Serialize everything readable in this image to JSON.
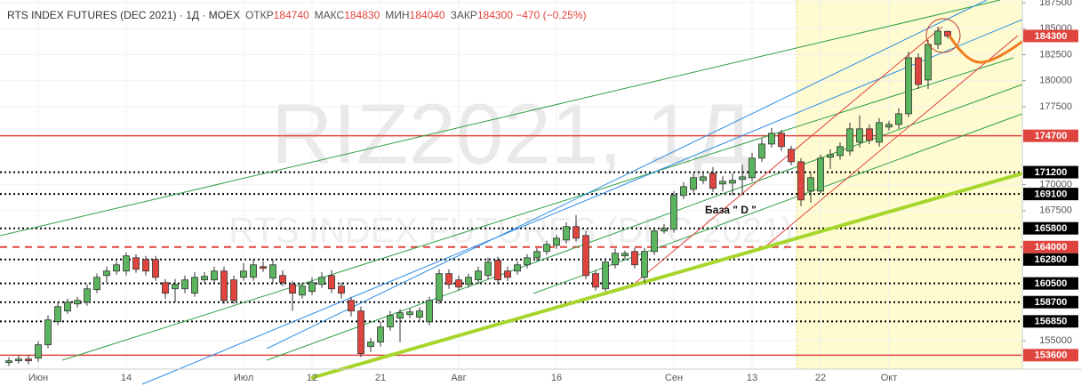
{
  "chart_data": {
    "type": "candlestick",
    "header": {
      "title": "RTS INDEX FUTURES (DEC 2021) · 1Д · MOEX",
      "stats": [
        {
          "label": "ОТКР",
          "value": 184740
        },
        {
          "label": "МАКС",
          "value": 184830
        },
        {
          "label": "МИН",
          "value": 184040
        },
        {
          "label": "ЗАКР",
          "value": 184300
        }
      ],
      "change": "−470 (−0.25%)"
    },
    "watermark": [
      "RIZ2021, 1Д",
      "RTS INDEX FUTURES (DEC 2021)"
    ],
    "annotation": "База \" D \"",
    "categories": [
      null,
      null,
      null,
      "Июн",
      null,
      null,
      null,
      null,
      null,
      null,
      null,
      null,
      "14",
      null,
      null,
      null,
      null,
      null,
      null,
      null,
      null,
      null,
      null,
      null,
      "Июл",
      null,
      null,
      null,
      null,
      null,
      null,
      "12",
      null,
      null,
      null,
      null,
      null,
      null,
      "21",
      null,
      null,
      null,
      null,
      null,
      null,
      null,
      "Авг",
      null,
      null,
      null,
      null,
      null,
      null,
      null,
      null,
      null,
      "16",
      null,
      null,
      null,
      null,
      null,
      null,
      null,
      null,
      null,
      null,
      null,
      "Сен",
      null,
      null,
      null,
      null,
      null,
      null,
      null,
      "13",
      null,
      null,
      null,
      null,
      null,
      null,
      "22",
      null,
      null,
      null,
      null,
      null,
      null,
      "Окт",
      null,
      null,
      null,
      null,
      null,
      null
    ],
    "open": [
      152890,
      153060,
      153230,
      153320,
      154600,
      156820,
      157850,
      158530,
      158700,
      159900,
      161260,
      161690,
      161690,
      162970,
      162800,
      162800,
      160580,
      159980,
      159980,
      159560,
      160840,
      160840,
      161690,
      160840,
      161090,
      161090,
      162120,
      161010,
      161260,
      160410,
      159380,
      159730,
      160410,
      161260,
      160240,
      158870,
      157850,
      154430,
      154860,
      156310,
      157160,
      157500,
      157250,
      156820,
      158870,
      161440,
      160840,
      160410,
      160840,
      161260,
      162720,
      161690,
      161690,
      162290,
      162970,
      163570,
      164170,
      164680,
      165970,
      165110,
      161440,
      159980,
      162290,
      163150,
      163570,
      161090,
      163570,
      165540,
      165710,
      168960,
      169550,
      170410,
      171090,
      170070,
      170150,
      170500,
      170670,
      172550,
      173910,
      174940,
      173400,
      172200,
      169380,
      169380,
      172630,
      172800,
      173230,
      174080,
      175370,
      174080,
      175540,
      175790,
      176820,
      182200,
      180070,
      183490,
      184740
    ],
    "high": [
      153400,
      153570,
      153570,
      154940,
      157420,
      158700,
      159040,
      159210,
      160410,
      161440,
      162120,
      162630,
      163490,
      163320,
      163150,
      163150,
      160920,
      160920,
      161260,
      161610,
      161610,
      162120,
      162120,
      161260,
      162460,
      162800,
      162630,
      162800,
      161780,
      160750,
      160580,
      161090,
      161610,
      161780,
      160580,
      159210,
      158270,
      155280,
      156820,
      157850,
      158020,
      158100,
      158190,
      159210,
      161860,
      161860,
      161260,
      161440,
      162120,
      162970,
      163060,
      162120,
      162630,
      163320,
      163910,
      164600,
      165200,
      166390,
      167080,
      165540,
      161780,
      162970,
      163830,
      163660,
      163910,
      163910,
      165880,
      166220,
      169380,
      170240,
      171090,
      171260,
      171690,
      170840,
      171090,
      171950,
      173060,
      174430,
      175450,
      175280,
      173740,
      172550,
      171090,
      172890,
      173400,
      174080,
      175970,
      176650,
      175790,
      176390,
      176140,
      177330,
      182800,
      182630,
      183910,
      185200,
      184830
    ],
    "low": [
      152550,
      152800,
      152720,
      152970,
      154260,
      156480,
      157590,
      158190,
      158360,
      159560,
      160580,
      161350,
      161260,
      161520,
      161260,
      160750,
      159040,
      158700,
      159560,
      159210,
      160580,
      160410,
      158530,
      158530,
      160750,
      160750,
      161610,
      160580,
      160240,
      157850,
      159040,
      159380,
      160070,
      159560,
      159040,
      157330,
      153400,
      153910,
      154430,
      155970,
      154860,
      157160,
      156910,
      156480,
      158530,
      159980,
      159810,
      160070,
      160410,
      160920,
      160410,
      160750,
      161350,
      161950,
      162630,
      163230,
      163830,
      164340,
      164510,
      160920,
      159810,
      159730,
      161950,
      162800,
      161950,
      160580,
      163230,
      165280,
      165370,
      168610,
      169210,
      170070,
      169300,
      169380,
      168960,
      169130,
      170320,
      172200,
      173570,
      173230,
      171860,
      167930,
      168270,
      169130,
      171520,
      172380,
      172800,
      173570,
      173910,
      173660,
      175200,
      175370,
      176480,
      179210,
      179210,
      183060,
      184040
    ],
    "close": [
      153060,
      153230,
      153060,
      154600,
      156990,
      158270,
      158700,
      158870,
      159980,
      161090,
      161690,
      162290,
      163150,
      161860,
      161690,
      161090,
      159560,
      160410,
      160840,
      161090,
      161180,
      161690,
      158870,
      158870,
      161690,
      162290,
      161950,
      162290,
      160580,
      159560,
      160240,
      160580,
      161090,
      159980,
      159560,
      157850,
      153740,
      154860,
      156310,
      157420,
      157680,
      157760,
      157850,
      158870,
      161440,
      160410,
      160150,
      161090,
      161690,
      162550,
      160840,
      161090,
      162290,
      162970,
      163570,
      164260,
      164850,
      165970,
      164850,
      161260,
      160150,
      162550,
      163400,
      163400,
      162290,
      163570,
      165540,
      165790,
      168960,
      169810,
      170670,
      170750,
      169640,
      170320,
      170410,
      170750,
      172550,
      173910,
      174940,
      173660,
      172200,
      168530,
      170670,
      172550,
      172890,
      173660,
      175370,
      175370,
      174260,
      175970,
      175790,
      176820,
      182200,
      179640,
      183490,
      184770,
      184300
    ],
    "up_color": "#5bb55e",
    "down_color": "#e0443e",
    "ylim": [
      152260,
      187760
    ],
    "yticks": [
      155000,
      167500,
      170000,
      177500,
      180000,
      182500,
      185000,
      187500
    ],
    "grid": true,
    "levels": [
      {
        "value": 184300,
        "color": "#e0443e",
        "style": "none"
      },
      {
        "value": 174700,
        "color": "#e0443e",
        "style": "solid"
      },
      {
        "value": 171200,
        "color": "#000000",
        "style": "dotted"
      },
      {
        "value": 169100,
        "color": "#000000",
        "style": "dotted"
      },
      {
        "value": 165800,
        "color": "#000000",
        "style": "dotted"
      },
      {
        "value": 164000,
        "color": "#e0443e",
        "style": "dashed"
      },
      {
        "value": 162800,
        "color": "#000000",
        "style": "dotted"
      },
      {
        "value": 160500,
        "color": "#000000",
        "style": "dotted"
      },
      {
        "value": 158700,
        "color": "#000000",
        "style": "dotted"
      },
      {
        "value": 156850,
        "color": "#000000",
        "style": "dotted"
      },
      {
        "value": 153600,
        "color": "#e0443e",
        "style": "solid"
      }
    ]
  }
}
